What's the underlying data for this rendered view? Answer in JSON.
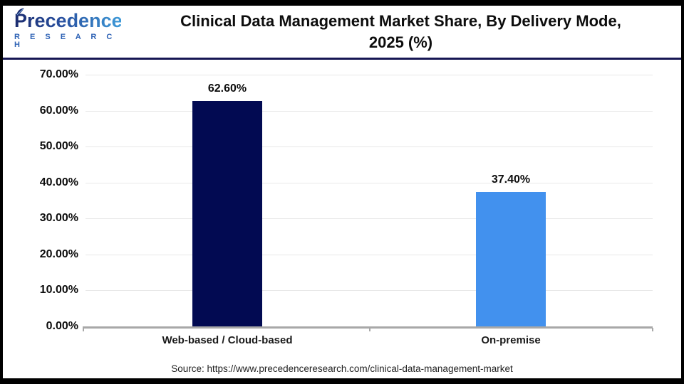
{
  "header": {
    "logo": {
      "name": "Precedence",
      "subtitle": "R E S E A R C H"
    },
    "title_line1": "Clinical Data Management Market Share, By Delivery Mode,",
    "title_line2": "2025 (%)"
  },
  "chart_data": {
    "type": "bar",
    "title": "Clinical Data Management Market Share, By Delivery Mode, 2025 (%)",
    "categories": [
      "Web-based / Cloud-based",
      "On-premise"
    ],
    "values": [
      62.6,
      37.4
    ],
    "value_labels": [
      "62.60%",
      "37.40%"
    ],
    "bar_colors": [
      "#020a52",
      "#4291ee"
    ],
    "xlabel": "",
    "ylabel": "",
    "ylim": [
      0,
      70
    ],
    "ytick_step": 10,
    "ytick_labels": [
      "0.00%",
      "10.00%",
      "20.00%",
      "30.00%",
      "40.00%",
      "50.00%",
      "60.00%",
      "70.00%"
    ],
    "grid": true,
    "legend_position": "none"
  },
  "footer": {
    "source": "Source: https://www.precedenceresearch.com/clinical-data-management-market"
  },
  "colors": {
    "bar_navy": "#020a52",
    "bar_blue": "#4291ee",
    "divider_navy": "#161653",
    "gridline": "#e8e8e8",
    "axis_gray": "#a8a8a8",
    "frame_black": "#000000",
    "logo_blue": "#2e62b5"
  }
}
